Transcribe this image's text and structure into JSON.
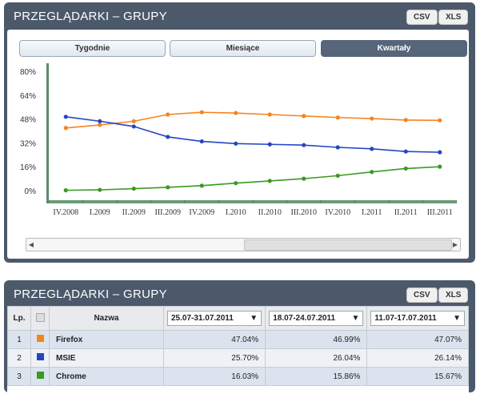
{
  "top_panel": {
    "title": "PRZEGLĄDARKI – GRUPY",
    "csv_label": "CSV",
    "xls_label": "XLS",
    "tabs": [
      "Tygodnie",
      "Miesiące",
      "Kwartały"
    ],
    "active_tab": "Kwartały"
  },
  "chart_data": {
    "type": "line",
    "categories": [
      "IV.2008",
      "I.2009",
      "II.2009",
      "III.2009",
      "IV.2009",
      "I.2010",
      "II.2010",
      "III.2010",
      "IV.2010",
      "I.2011",
      "II.2011",
      "III.2011"
    ],
    "y_ticks": [
      "80%",
      "64%",
      "48%",
      "32%",
      "16%",
      "0%"
    ],
    "ylim": [
      0,
      80
    ],
    "grid": false,
    "series": [
      {
        "name": "Firefox",
        "color": "#f5841f",
        "values": [
          42,
          44,
          46.5,
          51,
          52.5,
          52,
          51,
          50,
          49,
          48.3,
          47.3,
          47.07
        ]
      },
      {
        "name": "MSIE",
        "color": "#2745c2",
        "values": [
          49.5,
          46.5,
          43,
          36,
          33,
          31.5,
          31,
          30.5,
          29,
          28,
          26.2,
          25.7
        ]
      },
      {
        "name": "Chrome",
        "color": "#3a9a22",
        "values": [
          0.2,
          0.5,
          1.3,
          2.2,
          3.3,
          5,
          6.5,
          8,
          10,
          12.5,
          14.8,
          16.03
        ]
      }
    ]
  },
  "table": {
    "title": "PRZEGLĄDARKI – GRUPY",
    "csv_label": "CSV",
    "xls_label": "XLS",
    "headers": {
      "lp": "Lp.",
      "name": "Nazwa",
      "dates": [
        "25.07-31.07.2011",
        "18.07-24.07.2011",
        "11.07-17.07.2011"
      ]
    },
    "rows": [
      {
        "lp": "1",
        "name": "Firefox",
        "color": "#f5841f",
        "values": [
          "47.04%",
          "46.99%",
          "47.07%"
        ]
      },
      {
        "lp": "2",
        "name": "MSIE",
        "color": "#2745c2",
        "values": [
          "25.70%",
          "26.04%",
          "26.14%"
        ]
      },
      {
        "lp": "3",
        "name": "Chrome",
        "color": "#3a9a22",
        "values": [
          "16.03%",
          "15.86%",
          "15.67%"
        ]
      }
    ]
  }
}
